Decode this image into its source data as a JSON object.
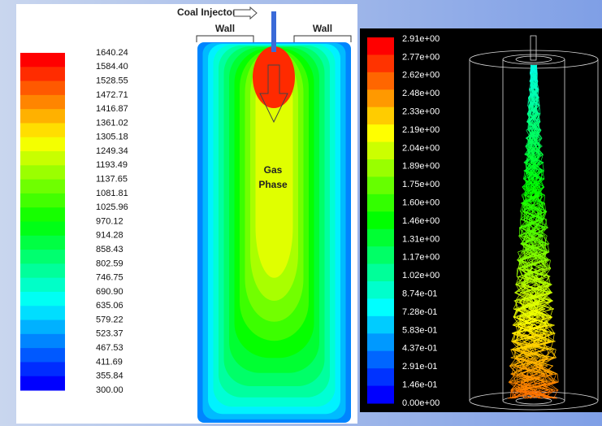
{
  "left_panel": {
    "colorbar_labels": [
      "1640.24",
      "1584.40",
      "1528.55",
      "1472.71",
      "1416.87",
      "1361.02",
      "1305.18",
      "1249.34",
      "1193.49",
      "1137.65",
      "1081.81",
      "1025.96",
      "970.12",
      "914.28",
      "858.43",
      "802.59",
      "746.75",
      "690.90",
      "635.06",
      "579.22",
      "523.37",
      "467.53",
      "411.69",
      "355.84",
      "300.00"
    ],
    "annotations": {
      "injector": "Coal Injector",
      "wall_left": "Wall",
      "wall_right": "Wall",
      "gas": "Gas",
      "phase": "Phase"
    }
  },
  "right_panel": {
    "colorbar_labels": [
      "2.91e+00",
      "2.77e+00",
      "2.62e+00",
      "2.48e+00",
      "2.33e+00",
      "2.19e+00",
      "2.04e+00",
      "1.89e+00",
      "1.75e+00",
      "1.60e+00",
      "1.46e+00",
      "1.31e+00",
      "1.17e+00",
      "1.02e+00",
      "8.74e-01",
      "7.28e-01",
      "5.83e-01",
      "4.37e-01",
      "2.91e-01",
      "1.46e-01",
      "0.00e+00"
    ]
  }
}
